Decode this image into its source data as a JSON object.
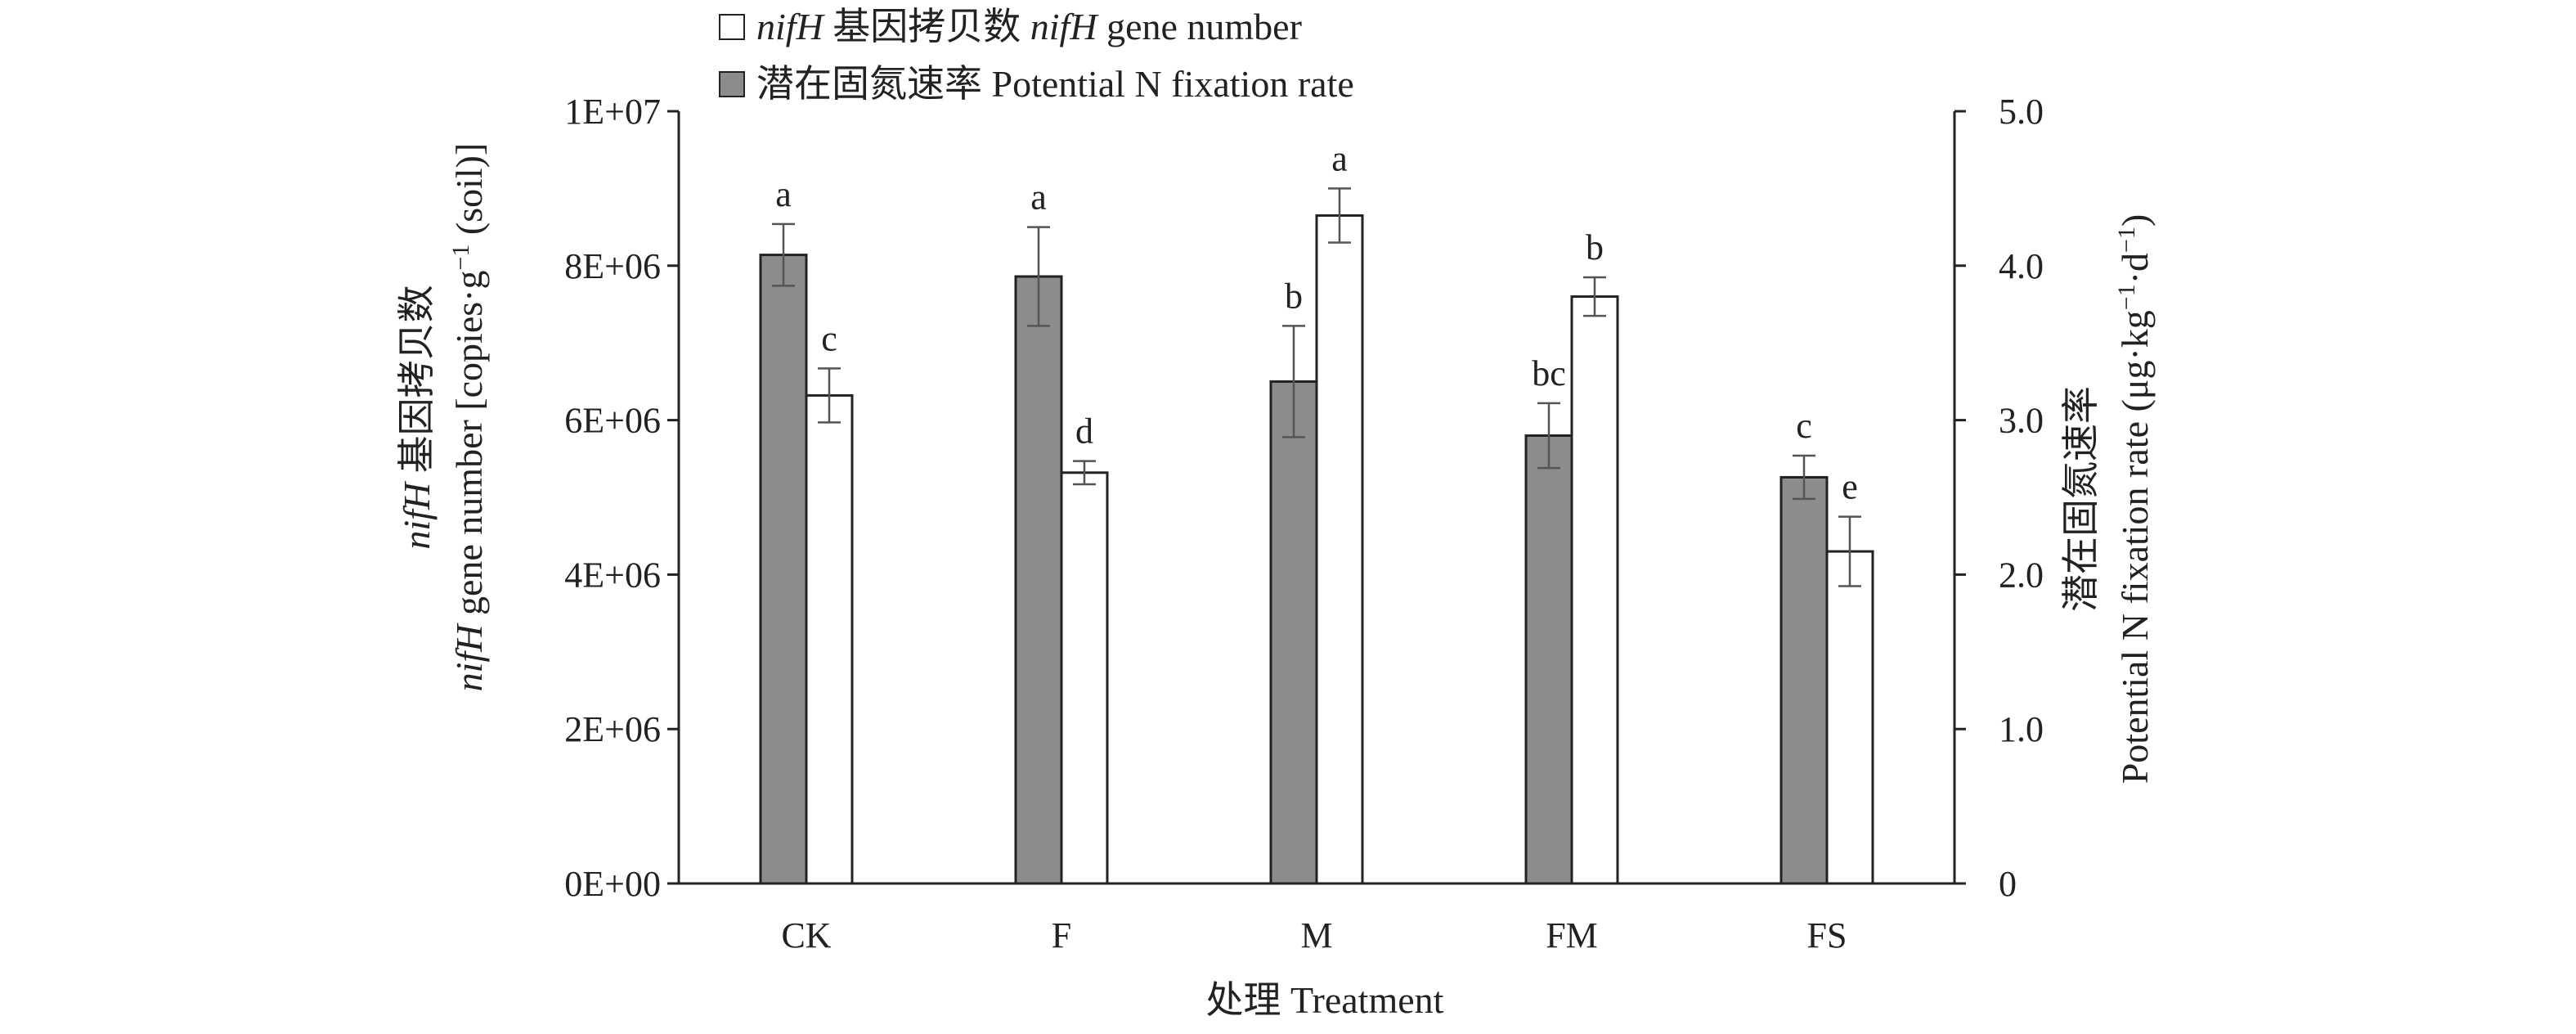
{
  "chart_data": {
    "type": "bar",
    "categories": [
      "CK",
      "F",
      "M",
      "FM",
      "FS"
    ],
    "series": [
      {
        "name": "潜在固氮速率 Potential N fixation rate",
        "axis": "right",
        "fill": "#8c8c8c",
        "values": [
          4.07,
          3.93,
          3.25,
          2.9,
          2.63
        ],
        "errors": [
          0.2,
          0.32,
          0.36,
          0.21,
          0.14
        ],
        "letters": [
          "a",
          "a",
          "b",
          "bc",
          "c"
        ]
      },
      {
        "name": "nifH 基因拷贝数 nifH gene number",
        "axis": "left",
        "fill": "#ffffff",
        "values": [
          6320000,
          5320000,
          8650000,
          7600000,
          4300000
        ],
        "errors": [
          350000,
          150000,
          350000,
          250000,
          450000
        ],
        "letters": [
          "c",
          "d",
          "a",
          "b",
          "e"
        ]
      }
    ],
    "legend_labels": [
      {
        "italic": "nifH",
        "text": " 基因拷贝数 ",
        "italic2": "nifH",
        "text2": " gene number",
        "swatch": "#ffffff"
      },
      {
        "italic": "",
        "text": "潜在固氮速率 Potential N fixation rate",
        "italic2": "",
        "text2": "",
        "swatch": "#8c8c8c"
      }
    ],
    "left_axis": {
      "ylim": [
        0,
        10000000
      ],
      "ticks": [
        "0E+00",
        "2E+06",
        "4E+06",
        "6E+06",
        "8E+06",
        "1E+07"
      ],
      "label_line1": {
        "italic": "nifH",
        "text": " 基因拷贝数"
      },
      "label_line2": {
        "italic": "nifH",
        "text": " gene number [copies·g",
        "sup": "−1",
        "tail": " (soil)]"
      }
    },
    "right_axis": {
      "ylim": [
        0,
        5
      ],
      "ticks": [
        "0",
        "1.0",
        "2.0",
        "3.0",
        "4.0",
        "5.0"
      ],
      "label_line1": "潜在固氮速率",
      "label_line2": {
        "text": "Potential N fixation rate (μg·kg",
        "sup1": "−1",
        "mid": "·d",
        "sup2": "−1",
        "tail": ")"
      }
    },
    "xlabel": "处理 Treatment",
    "grid": false,
    "legend_position": "top-left"
  }
}
